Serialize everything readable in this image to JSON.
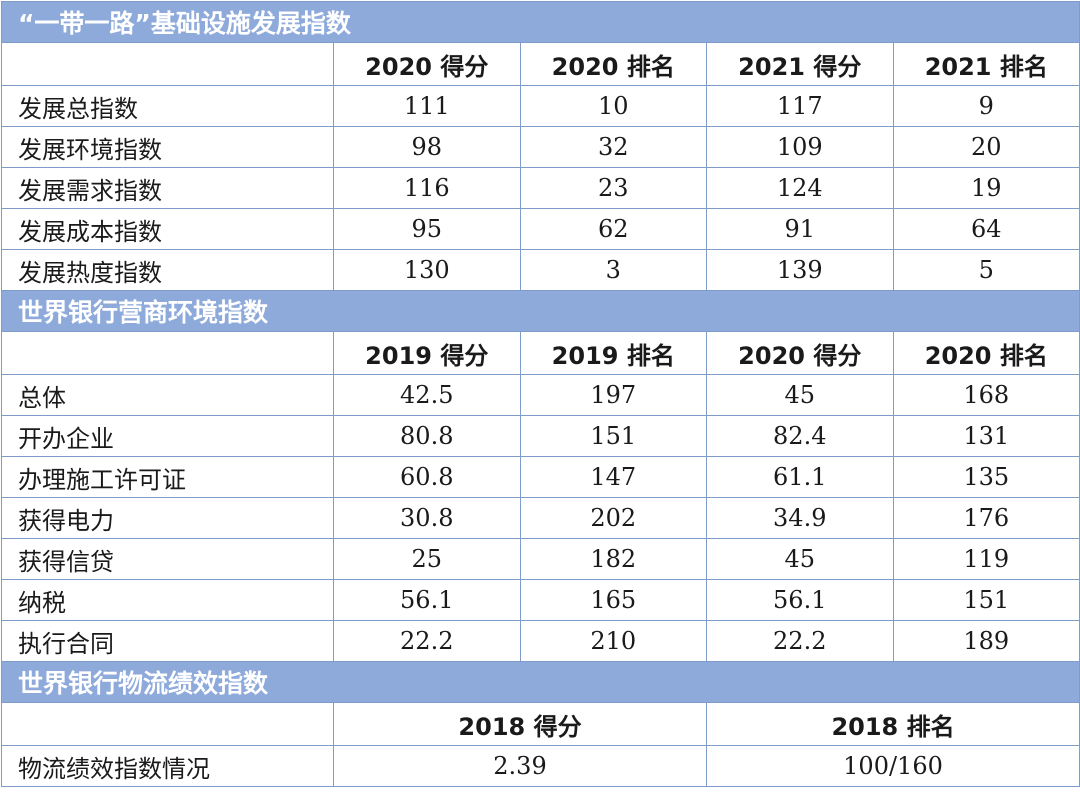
{
  "sections": [
    {
      "title": "“一带一路”基础设施发展指数",
      "headers": [
        "2020 得分",
        "2020 排名",
        "2021 得分",
        "2021 排名"
      ],
      "rows": [
        {
          "label": "发展总指数",
          "values": [
            "111",
            "10",
            "117",
            "9"
          ]
        },
        {
          "label": "发展环境指数",
          "values": [
            "98",
            "32",
            "109",
            "20"
          ]
        },
        {
          "label": "发展需求指数",
          "values": [
            "116",
            "23",
            "124",
            "19"
          ]
        },
        {
          "label": "发展成本指数",
          "values": [
            "95",
            "62",
            "91",
            "64"
          ]
        },
        {
          "label": "发展热度指数",
          "values": [
            "130",
            "3",
            "139",
            "5"
          ]
        }
      ]
    },
    {
      "title": "世界银行营商环境指数",
      "headers": [
        "2019 得分",
        "2019 排名",
        "2020 得分",
        "2020 排名"
      ],
      "rows": [
        {
          "label": "总体",
          "values": [
            "42.5",
            "197",
            "45",
            "168"
          ]
        },
        {
          "label": "开办企业",
          "values": [
            "80.8",
            "151",
            "82.4",
            "131"
          ]
        },
        {
          "label": "办理施工许可证",
          "values": [
            "60.8",
            "147",
            "61.1",
            "135"
          ]
        },
        {
          "label": "获得电力",
          "values": [
            "30.8",
            "202",
            "34.9",
            "176"
          ]
        },
        {
          "label": "获得信贷",
          "values": [
            "25",
            "182",
            "45",
            "119"
          ]
        },
        {
          "label": "纳税",
          "values": [
            "56.1",
            "165",
            "56.1",
            "151"
          ]
        },
        {
          "label": "执行合同",
          "values": [
            "22.2",
            "210",
            "22.2",
            "189"
          ]
        }
      ]
    },
    {
      "title": "世界银行物流绩效指数",
      "headers": [
        "2018 得分",
        "2018 排名"
      ],
      "rows": [
        {
          "label": "物流绩效指数情况",
          "values": [
            "2.39",
            "100/160"
          ]
        }
      ]
    }
  ]
}
